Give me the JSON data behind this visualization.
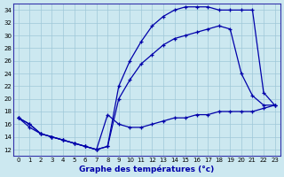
{
  "title": "Graphe des températures (°c)",
  "bg_color": "#cce8f0",
  "line_color": "#0000aa",
  "xlim": [
    -0.5,
    23.5
  ],
  "ylim": [
    11,
    35
  ],
  "xticks": [
    0,
    1,
    2,
    3,
    4,
    5,
    6,
    7,
    8,
    9,
    10,
    11,
    12,
    13,
    14,
    15,
    16,
    17,
    18,
    19,
    20,
    21,
    22,
    23
  ],
  "yticks": [
    12,
    14,
    16,
    18,
    20,
    22,
    24,
    26,
    28,
    30,
    32,
    34
  ],
  "curve_top": {
    "x": [
      0,
      1,
      2,
      3,
      4,
      5,
      6,
      7,
      8,
      9,
      10,
      11,
      12,
      13,
      14,
      15,
      16,
      17,
      18,
      19,
      20,
      21,
      22,
      23
    ],
    "y": [
      17.0,
      16.0,
      14.5,
      14.0,
      13.5,
      13.0,
      12.5,
      12.0,
      12.5,
      22.0,
      26.0,
      29.0,
      31.5,
      33.0,
      34.0,
      34.5,
      34.5,
      34.5,
      34.0,
      34.0,
      34.0,
      34.0,
      21.0,
      19.0
    ]
  },
  "curve_mid": {
    "x": [
      0,
      1,
      2,
      3,
      4,
      5,
      6,
      7,
      8,
      9,
      10,
      11,
      12,
      13,
      14,
      15,
      16,
      17,
      18,
      19,
      20,
      21,
      22,
      23
    ],
    "y": [
      17.0,
      16.0,
      14.5,
      14.0,
      13.5,
      13.0,
      12.5,
      12.0,
      12.5,
      20.0,
      23.0,
      25.5,
      27.0,
      28.5,
      29.5,
      30.0,
      30.5,
      31.0,
      31.5,
      31.0,
      24.0,
      20.5,
      19.0,
      19.0
    ]
  },
  "curve_bot": {
    "x": [
      0,
      1,
      2,
      3,
      4,
      5,
      6,
      7,
      8,
      9,
      10,
      11,
      12,
      13,
      14,
      15,
      16,
      17,
      18,
      19,
      20,
      21,
      22,
      23
    ],
    "y": [
      17.0,
      15.5,
      14.5,
      14.0,
      13.5,
      13.0,
      12.5,
      12.0,
      17.5,
      16.0,
      15.5,
      15.5,
      16.0,
      16.5,
      17.0,
      17.0,
      17.5,
      17.5,
      18.0,
      18.0,
      18.0,
      18.0,
      18.5,
      19.0
    ]
  }
}
